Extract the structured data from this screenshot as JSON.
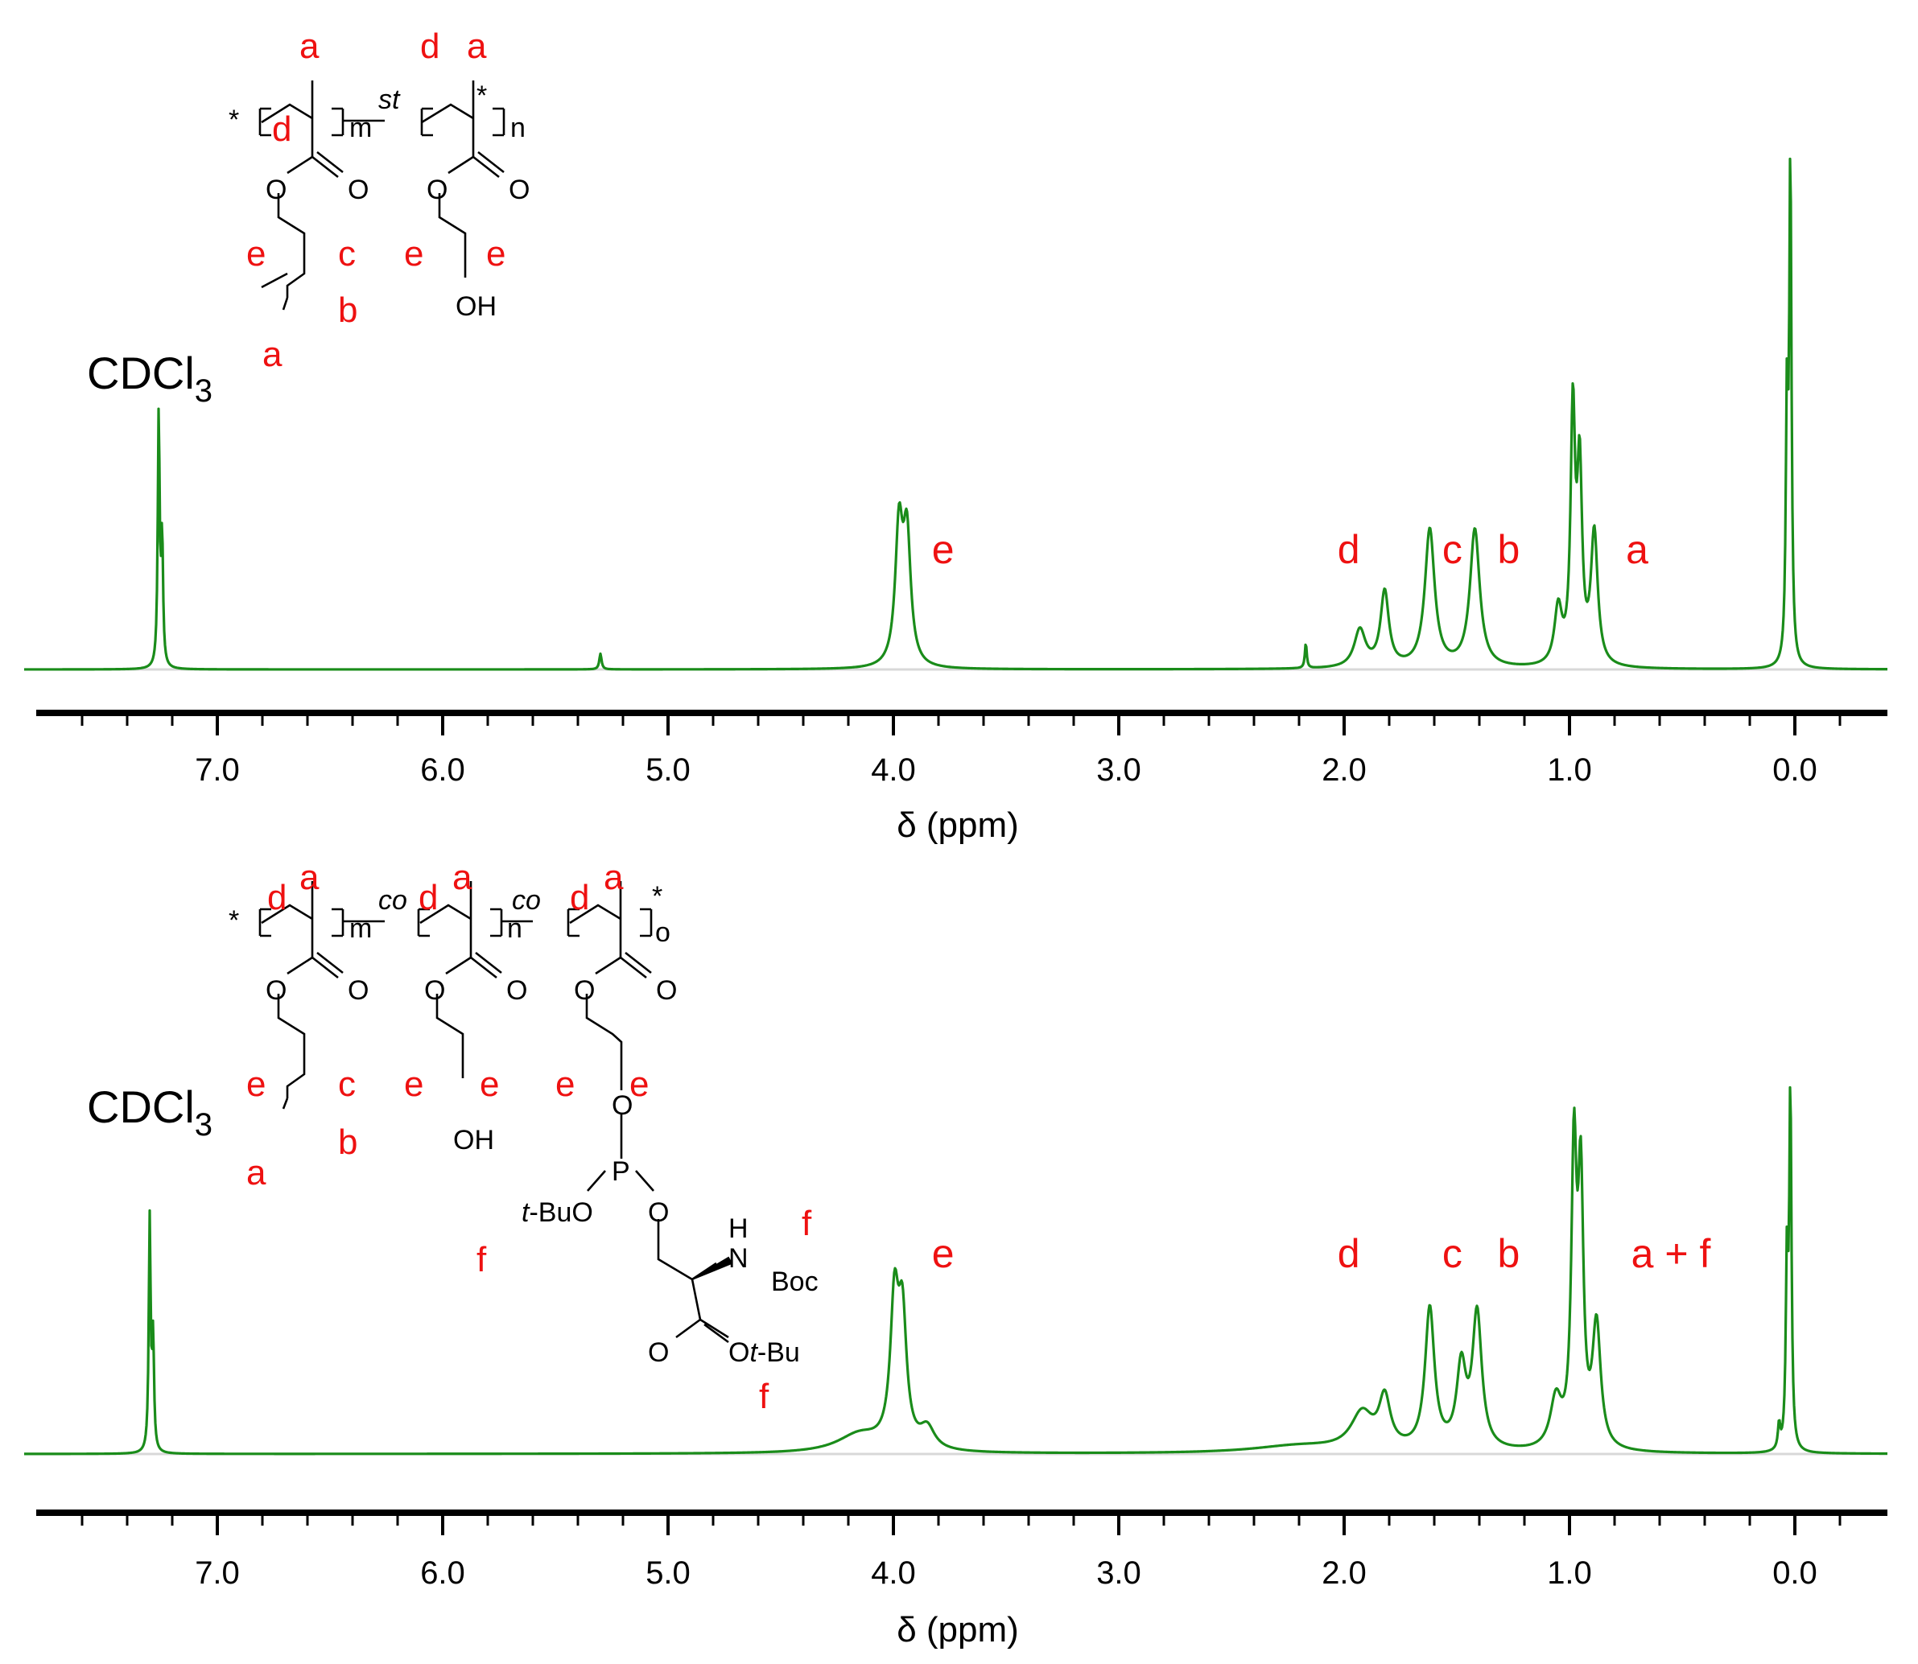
{
  "colors": {
    "spectrum": "#1a8c1a",
    "label": "#ee1111",
    "axis": "#000000",
    "baseline_shade": "#d8d8d8"
  },
  "chart_data": [
    {
      "type": "line",
      "panel": "top",
      "xlabel": "δ (ppm)",
      "xlim": [
        7.8,
        -0.4
      ],
      "x_reversed": true,
      "ticks": [
        "7.0",
        "6.0",
        "5.0",
        "4.0",
        "3.0",
        "2.0",
        "1.0",
        "0.0"
      ],
      "tick_values": [
        7.0,
        6.0,
        5.0,
        4.0,
        3.0,
        2.0,
        1.0,
        0.0
      ],
      "solvent_label": {
        "text": "CDCl",
        "sub": "3"
      },
      "peak_labels": [
        {
          "text": "e",
          "ppm": 3.78
        },
        {
          "text": "d",
          "ppm": 1.98
        },
        {
          "text": "c",
          "ppm": 1.52
        },
        {
          "text": "b",
          "ppm": 1.27
        },
        {
          "text": "a",
          "ppm": 0.7
        }
      ],
      "peaks": [
        {
          "ppm": 7.26,
          "height": 0.405,
          "width": 0.005
        },
        {
          "ppm": 7.245,
          "height": 0.2,
          "width": 0.005
        },
        {
          "ppm": 5.3,
          "height": 0.025,
          "width": 0.006
        },
        {
          "ppm": 3.975,
          "height": 0.215,
          "width": 0.02
        },
        {
          "ppm": 3.94,
          "height": 0.2,
          "width": 0.02
        },
        {
          "ppm": 2.17,
          "height": 0.04,
          "width": 0.005
        },
        {
          "ppm": 1.93,
          "height": 0.06,
          "width": 0.03
        },
        {
          "ppm": 1.82,
          "height": 0.12,
          "width": 0.022
        },
        {
          "ppm": 1.62,
          "height": 0.22,
          "width": 0.026
        },
        {
          "ppm": 1.42,
          "height": 0.22,
          "width": 0.026
        },
        {
          "ppm": 1.05,
          "height": 0.09,
          "width": 0.02
        },
        {
          "ppm": 0.985,
          "height": 0.395,
          "width": 0.012
        },
        {
          "ppm": 0.955,
          "height": 0.3,
          "width": 0.013
        },
        {
          "ppm": 0.89,
          "height": 0.21,
          "width": 0.018
        },
        {
          "ppm": 0.02,
          "height": 0.79,
          "width": 0.006
        },
        {
          "ppm": 0.035,
          "height": 0.4,
          "width": 0.006
        }
      ],
      "structure_labels": {
        "m": "m",
        "n": "n",
        "st": "st",
        "star": "*",
        "O": "O",
        "OH": "OH",
        "a": "a",
        "b": "b",
        "c": "c",
        "d": "d",
        "e": "e"
      }
    },
    {
      "type": "line",
      "panel": "bottom",
      "xlabel": "δ (ppm)",
      "xlim": [
        7.8,
        -0.4
      ],
      "x_reversed": true,
      "ticks": [
        "7.0",
        "6.0",
        "5.0",
        "4.0",
        "3.0",
        "2.0",
        "1.0",
        "0.0"
      ],
      "tick_values": [
        7.0,
        6.0,
        5.0,
        4.0,
        3.0,
        2.0,
        1.0,
        0.0
      ],
      "solvent_label": {
        "text": "CDCl",
        "sub": "3"
      },
      "peak_labels": [
        {
          "text": "e",
          "ppm": 3.78
        },
        {
          "text": "d",
          "ppm": 1.98
        },
        {
          "text": "c",
          "ppm": 1.52
        },
        {
          "text": "b",
          "ppm": 1.27
        },
        {
          "text": "a + f",
          "ppm": 0.55
        }
      ],
      "peaks": [
        {
          "ppm": 7.3,
          "height": 0.38,
          "width": 0.005
        },
        {
          "ppm": 7.285,
          "height": 0.18,
          "width": 0.005
        },
        {
          "ppm": 4.15,
          "height": 0.03,
          "width": 0.12
        },
        {
          "ppm": 3.995,
          "height": 0.23,
          "width": 0.022
        },
        {
          "ppm": 3.96,
          "height": 0.2,
          "width": 0.022
        },
        {
          "ppm": 3.85,
          "height": 0.035,
          "width": 0.04
        },
        {
          "ppm": 2.2,
          "height": 0.012,
          "width": 0.25
        },
        {
          "ppm": 1.92,
          "height": 0.06,
          "width": 0.06
        },
        {
          "ppm": 1.82,
          "height": 0.08,
          "width": 0.03
        },
        {
          "ppm": 1.62,
          "height": 0.23,
          "width": 0.025
        },
        {
          "ppm": 1.48,
          "height": 0.13,
          "width": 0.025
        },
        {
          "ppm": 1.41,
          "height": 0.22,
          "width": 0.025
        },
        {
          "ppm": 1.06,
          "height": 0.08,
          "width": 0.03
        },
        {
          "ppm": 0.98,
          "height": 0.47,
          "width": 0.014
        },
        {
          "ppm": 0.95,
          "height": 0.41,
          "width": 0.014
        },
        {
          "ppm": 0.88,
          "height": 0.2,
          "width": 0.022
        },
        {
          "ppm": 0.07,
          "height": 0.04,
          "width": 0.006
        },
        {
          "ppm": 0.02,
          "height": 0.58,
          "width": 0.006
        },
        {
          "ppm": 0.035,
          "height": 0.3,
          "width": 0.006
        }
      ],
      "structure_labels": {
        "m": "m",
        "n": "n",
        "o": "o",
        "co": "co",
        "star": "*",
        "O": "O",
        "OH": "OH",
        "P": "P",
        "H": "H",
        "N": "N",
        "Boc": "Boc",
        "tBuO_prefix": "t",
        "tBuO_suffix": "-BuO",
        "Otbu_O": "O",
        "Otbu_t": "t",
        "Otbu_suffix": "-Bu",
        "a": "a",
        "b": "b",
        "c": "c",
        "d": "d",
        "e": "e",
        "f": "f"
      }
    }
  ]
}
